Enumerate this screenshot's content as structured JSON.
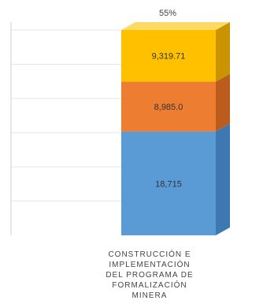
{
  "chart_data": {
    "type": "bar",
    "stacked": true,
    "three_d": true,
    "categories": [
      "CONSTRUCCIÓN E\nIMPLEMENTACIÓN\nDEL PROGRAMA DE\nFORMALIZACIÓN\nMINERA"
    ],
    "series": [
      {
        "values": [
          18715
        ]
      },
      {
        "values": [
          8985
        ]
      },
      {
        "values": [
          9319.71
        ]
      }
    ],
    "data_labels": [
      "18,715",
      "8,985.0",
      "9,319.71"
    ],
    "top_label": "55%",
    "ylim": [
      0,
      37019.71
    ],
    "grid": true,
    "legend": "none",
    "colors": {
      "series": [
        "#5b9bd5",
        "#ed7d31",
        "#ffc000"
      ],
      "series_side": [
        "#3d78b2",
        "#bc5c1c",
        "#c99400"
      ],
      "series_top": [
        "#8fbce6",
        "#f4a673",
        "#ffd966"
      ],
      "grid": "#e6e6e6",
      "axis": "#cfcfcf",
      "label_text": "#333333"
    }
  }
}
